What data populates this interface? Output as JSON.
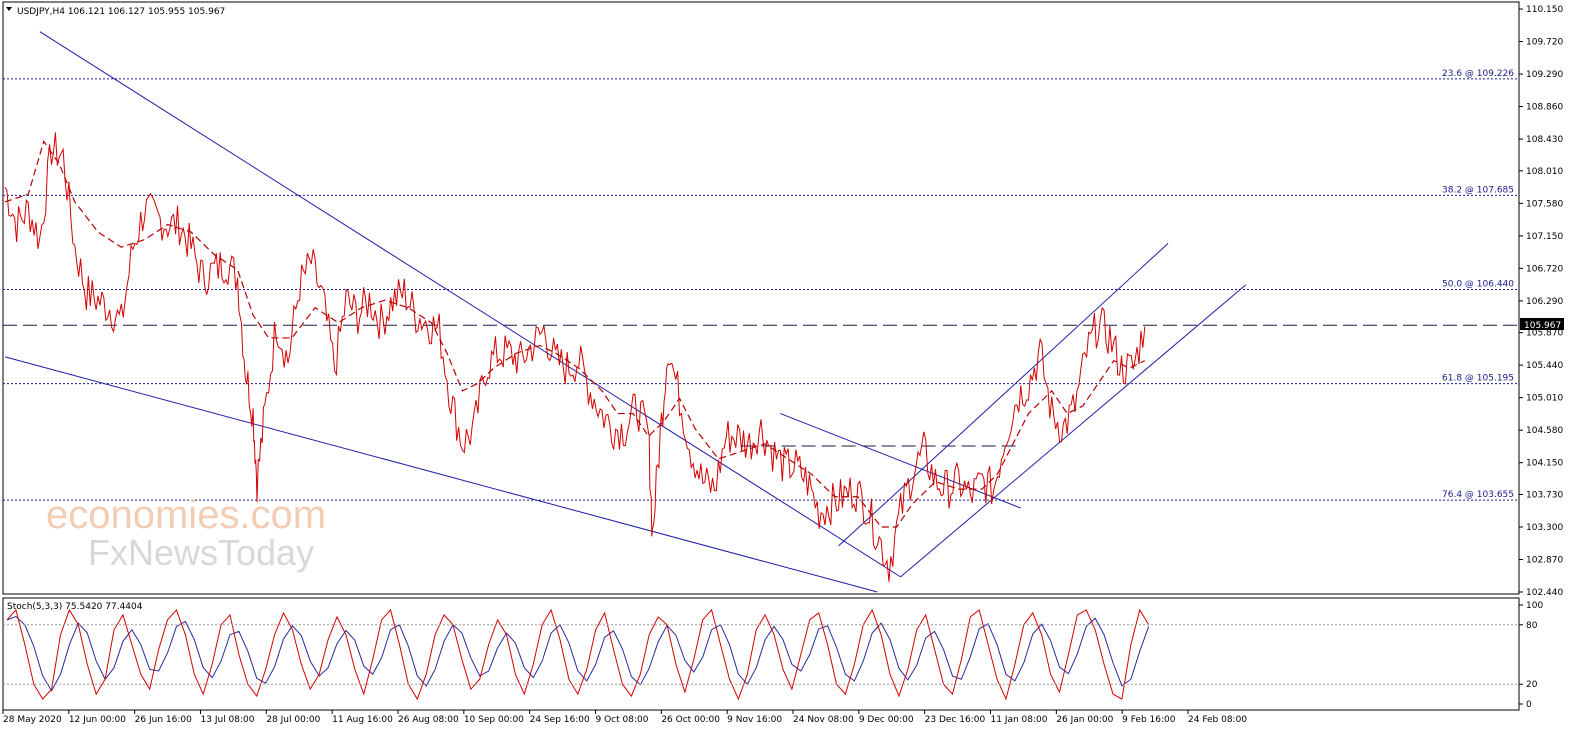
{
  "chart_data": [
    {
      "type": "line",
      "symbol": "USDJPY",
      "header": "USDJPY,H4  106.121 106.127 105.955 105.967",
      "current_price_label": "105.967",
      "ylim": [
        102.44,
        110.15
      ],
      "price_ticks": [
        "110.150",
        "109.720",
        "109.290",
        "108.860",
        "108.430",
        "108.010",
        "107.580",
        "107.150",
        "106.720",
        "106.290",
        "105.870",
        "105.440",
        "105.010",
        "104.580",
        "104.150",
        "103.730",
        "103.300",
        "102.870",
        "102.440"
      ],
      "x_tick_labels": [
        "28 May 2020",
        "12 Jun 00:00",
        "26 Jun 16:00",
        "13 Jul 08:00",
        "28 Jul 00:00",
        "11 Aug 16:00",
        "26 Aug 08:00",
        "10 Sep 00:00",
        "24 Sep 16:00",
        "9 Oct 08:00",
        "26 Oct 00:00",
        "9 Nov 16:00",
        "24 Nov 08:00",
        "9 Dec 00:00",
        "23 Dec 16:00",
        "11 Jan 08:00",
        "26 Jan 00:00",
        "9 Feb 16:00",
        "24 Feb 08:00"
      ],
      "price_path": [
        [
          0,
          107.8
        ],
        [
          3,
          107.3
        ],
        [
          6,
          107.5
        ],
        [
          9,
          107.1
        ],
        [
          12,
          108.3
        ],
        [
          15,
          108.2
        ],
        [
          18,
          107.0
        ],
        [
          21,
          106.4
        ],
        [
          24,
          106.3
        ],
        [
          27,
          106.2
        ],
        [
          30,
          106.0
        ],
        [
          33,
          107.0
        ],
        [
          36,
          107.5
        ],
        [
          39,
          107.4
        ],
        [
          42,
          107.3
        ],
        [
          45,
          107.3
        ],
        [
          48,
          107.0
        ],
        [
          51,
          106.6
        ],
        [
          54,
          106.7
        ],
        [
          57,
          106.8
        ],
        [
          60,
          106.6
        ],
        [
          62,
          105.4
        ],
        [
          64,
          104.8
        ],
        [
          65,
          103.9
        ],
        [
          67,
          104.8
        ],
        [
          70,
          106.0
        ],
        [
          73,
          105.5
        ],
        [
          76,
          106.5
        ],
        [
          79,
          106.8
        ],
        [
          82,
          106.3
        ],
        [
          85,
          105.4
        ],
        [
          88,
          106.3
        ],
        [
          91,
          106.1
        ],
        [
          94,
          106.3
        ],
        [
          97,
          106.0
        ],
        [
          100,
          106.3
        ],
        [
          103,
          106.4
        ],
        [
          106,
          106.1
        ],
        [
          109,
          106.0
        ],
        [
          112,
          105.9
        ],
        [
          115,
          105.0
        ],
        [
          118,
          104.4
        ],
        [
          121,
          104.6
        ],
        [
          124,
          105.4
        ],
        [
          127,
          105.6
        ],
        [
          130,
          105.6
        ],
        [
          133,
          105.5
        ],
        [
          136,
          105.7
        ],
        [
          139,
          105.9
        ],
        [
          142,
          105.5
        ],
        [
          145,
          105.4
        ],
        [
          148,
          105.5
        ],
        [
          151,
          105.1
        ],
        [
          154,
          104.8
        ],
        [
          157,
          104.6
        ],
        [
          160,
          104.6
        ],
        [
          163,
          104.9
        ],
        [
          166,
          104.5
        ],
        [
          167,
          103.2
        ],
        [
          169,
          104.5
        ],
        [
          171,
          105.7
        ],
        [
          174,
          105.0
        ],
        [
          177,
          104.3
        ],
        [
          180,
          103.9
        ],
        [
          183,
          103.8
        ],
        [
          186,
          104.5
        ],
        [
          189,
          104.5
        ],
        [
          192,
          104.4
        ],
        [
          195,
          104.6
        ],
        [
          198,
          104.3
        ],
        [
          201,
          104.1
        ],
        [
          204,
          104.1
        ],
        [
          207,
          103.9
        ],
        [
          210,
          103.5
        ],
        [
          213,
          103.6
        ],
        [
          216,
          103.7
        ],
        [
          219,
          103.8
        ],
        [
          222,
          103.6
        ],
        [
          225,
          103.2
        ],
        [
          228,
          102.8
        ],
        [
          231,
          103.5
        ],
        [
          234,
          104.0
        ],
        [
          237,
          104.3
        ],
        [
          240,
          103.9
        ],
        [
          243,
          103.8
        ],
        [
          246,
          103.9
        ],
        [
          249,
          103.7
        ],
        [
          252,
          103.9
        ],
        [
          255,
          103.8
        ],
        [
          258,
          104.5
        ],
        [
          261,
          105.0
        ],
        [
          264,
          105.2
        ],
        [
          267,
          105.6
        ],
        [
          270,
          104.8
        ],
        [
          273,
          104.6
        ],
        [
          276,
          104.9
        ],
        [
          279,
          105.6
        ],
        [
          282,
          106.0
        ],
        [
          285,
          105.8
        ],
        [
          288,
          105.4
        ],
        [
          291,
          105.4
        ],
        [
          294,
          105.95
        ]
      ],
      "ma_path": [
        [
          0,
          107.6
        ],
        [
          6,
          107.7
        ],
        [
          10,
          108.4
        ],
        [
          14,
          108.1
        ],
        [
          18,
          107.6
        ],
        [
          24,
          107.2
        ],
        [
          30,
          107.0
        ],
        [
          36,
          107.1
        ],
        [
          42,
          107.3
        ],
        [
          48,
          107.2
        ],
        [
          54,
          106.9
        ],
        [
          60,
          106.7
        ],
        [
          64,
          106.1
        ],
        [
          68,
          105.8
        ],
        [
          74,
          105.8
        ],
        [
          80,
          106.2
        ],
        [
          86,
          106.0
        ],
        [
          92,
          106.2
        ],
        [
          98,
          106.3
        ],
        [
          104,
          106.2
        ],
        [
          110,
          106.0
        ],
        [
          114,
          105.6
        ],
        [
          118,
          105.1
        ],
        [
          122,
          105.2
        ],
        [
          126,
          105.4
        ],
        [
          132,
          105.6
        ],
        [
          138,
          105.7
        ],
        [
          142,
          105.6
        ],
        [
          148,
          105.4
        ],
        [
          154,
          105.1
        ],
        [
          158,
          104.8
        ],
        [
          162,
          104.8
        ],
        [
          166,
          104.5
        ],
        [
          170,
          104.7
        ],
        [
          174,
          105.0
        ],
        [
          178,
          104.6
        ],
        [
          184,
          104.2
        ],
        [
          190,
          104.3
        ],
        [
          196,
          104.4
        ],
        [
          202,
          104.2
        ],
        [
          208,
          104.0
        ],
        [
          214,
          103.7
        ],
        [
          220,
          103.7
        ],
        [
          226,
          103.3
        ],
        [
          230,
          103.3
        ],
        [
          234,
          103.6
        ],
        [
          240,
          103.9
        ],
        [
          246,
          103.8
        ],
        [
          252,
          103.8
        ],
        [
          256,
          104.0
        ],
        [
          260,
          104.4
        ],
        [
          264,
          104.8
        ],
        [
          270,
          105.1
        ],
        [
          274,
          104.8
        ],
        [
          278,
          104.9
        ],
        [
          282,
          105.2
        ],
        [
          286,
          105.5
        ],
        [
          290,
          105.4
        ],
        [
          294,
          105.5
        ]
      ],
      "horizontal_levels": [
        {
          "label": "23.6 @ 109.226",
          "price": 109.226
        },
        {
          "label": "38.2 @ 107.685",
          "price": 107.685
        },
        {
          "label": "50.0 @ 106.440",
          "price": 106.44
        },
        {
          "label": "61.8 @ 105.195",
          "price": 105.195
        },
        {
          "label": "76.4 @ 103.655",
          "price": 103.655
        }
      ],
      "dashed_levels": [
        105.967,
        104.37
      ],
      "trendlines": [
        {
          "from": [
            9,
            109.85
          ],
          "to": [
            231,
            102.64
          ]
        },
        {
          "from": [
            0,
            105.55
          ],
          "to": [
            225,
            102.44
          ]
        },
        {
          "from": [
            215,
            103.05
          ],
          "to": [
            300,
            107.05
          ]
        },
        {
          "from": [
            231,
            102.64
          ],
          "to": [
            320,
            106.5
          ]
        },
        {
          "from": [
            200,
            104.8
          ],
          "to": [
            262,
            103.55
          ]
        }
      ]
    },
    {
      "type": "line",
      "indicator": "Stoch(5,3,3)",
      "header": "Stoch(5,3,3) 75.5420 77.4404",
      "ylim": [
        0,
        100
      ],
      "ticks": [
        "100",
        "80",
        "20",
        "0"
      ],
      "levels": [
        80,
        20
      ],
      "main_values": [
        85,
        95,
        60,
        20,
        5,
        15,
        70,
        95,
        80,
        40,
        10,
        25,
        75,
        90,
        60,
        30,
        15,
        55,
        85,
        95,
        70,
        30,
        10,
        40,
        80,
        90,
        50,
        20,
        8,
        35,
        70,
        92,
        75,
        40,
        15,
        30,
        65,
        88,
        70,
        35,
        10,
        45,
        85,
        95,
        60,
        20,
        5,
        30,
        70,
        90,
        80,
        45,
        15,
        25,
        60,
        85,
        70,
        30,
        10,
        40,
        80,
        95,
        65,
        25,
        10,
        35,
        75,
        92,
        55,
        20,
        8,
        30,
        70,
        88,
        80,
        40,
        12,
        45,
        85,
        95,
        60,
        25,
        5,
        30,
        75,
        90,
        70,
        35,
        15,
        50,
        85,
        92,
        60,
        20,
        10,
        40,
        80,
        95,
        70,
        30,
        8,
        35,
        75,
        90,
        55,
        20,
        10,
        45,
        88,
        95,
        60,
        25,
        5,
        40,
        80,
        92,
        70,
        30,
        12,
        50,
        90,
        95,
        75,
        40,
        10,
        5,
        60,
        95,
        80
      ]
    }
  ],
  "watermark": {
    "line1": "economies.com",
    "line2": "FxNewsToday"
  },
  "colors": {
    "price": "#d40000",
    "ma": "#b40000",
    "trend": "#1f1fa8",
    "level": "#1a1a8c",
    "stoch_main": "#d40000",
    "stoch_signal": "#2a2aa0"
  }
}
